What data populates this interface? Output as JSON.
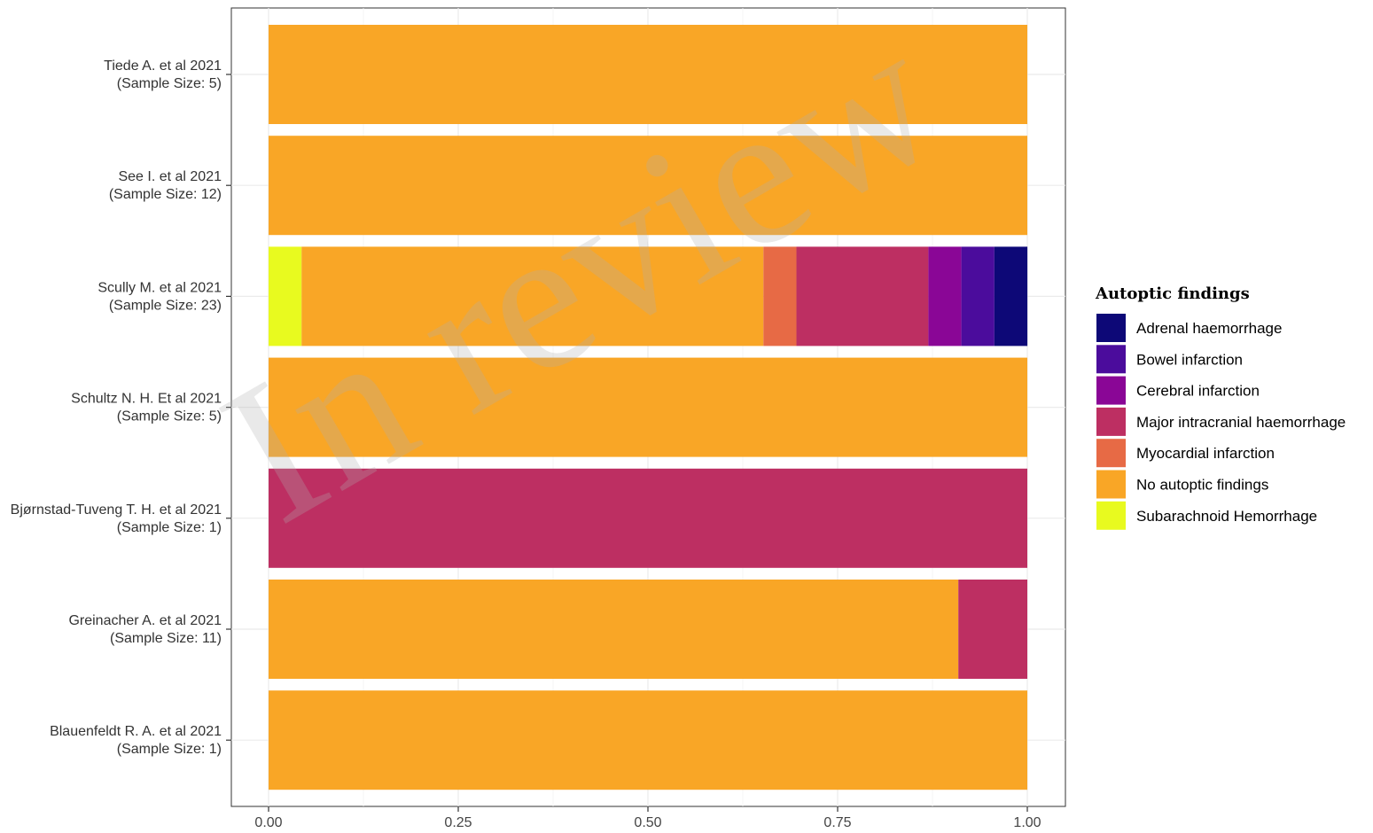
{
  "chart_data": {
    "type": "bar",
    "orientation": "horizontal-stacked",
    "categories": [
      {
        "name": "Tiede A. et al 2021",
        "sample": "(Sample Size: 5)"
      },
      {
        "name": "See I. et al 2021",
        "sample": "(Sample Size: 12)"
      },
      {
        "name": "Scully M. et al 2021",
        "sample": "(Sample Size: 23)"
      },
      {
        "name": "Schultz N. H. Et al 2021",
        "sample": "(Sample Size: 5)"
      },
      {
        "name": "Bjørnstad-Tuveng T. H. et al 2021",
        "sample": "(Sample Size: 1)"
      },
      {
        "name": "Greinacher A. et al 2021",
        "sample": "(Sample Size: 11)"
      },
      {
        "name": "Blauenfeldt R. A. et al 2021",
        "sample": "(Sample Size: 1)"
      }
    ],
    "series": [
      {
        "name": "Subarachnoid Hemorrhage",
        "color": "#E8FA1F",
        "values": [
          0,
          0,
          0.0435,
          0,
          0,
          0,
          0
        ]
      },
      {
        "name": "No autoptic findings",
        "color": "#F9A626",
        "values": [
          1,
          1,
          0.6087,
          1,
          0,
          0.9091,
          1
        ]
      },
      {
        "name": "Myocardial infarction",
        "color": "#E76A45",
        "values": [
          0,
          0,
          0.0435,
          0,
          0,
          0,
          0
        ]
      },
      {
        "name": "Major intracranial haemorrhage",
        "color": "#BD2F62",
        "values": [
          0,
          0,
          0.1739,
          0,
          1,
          0.0909,
          0
        ]
      },
      {
        "name": "Cerebral infarction",
        "color": "#8A0696",
        "values": [
          0,
          0,
          0.0435,
          0,
          0,
          0,
          0
        ]
      },
      {
        "name": "Bowel infarction",
        "color": "#4B0C9C",
        "values": [
          0,
          0,
          0.0435,
          0,
          0,
          0,
          0
        ]
      },
      {
        "name": "Adrenal haemorrhage",
        "color": "#0D0877",
        "values": [
          0,
          0,
          0.0435,
          0,
          0,
          0,
          0
        ]
      }
    ],
    "x_ticks": [
      "0.00",
      "0.25",
      "0.50",
      "0.75",
      "1.00"
    ],
    "xlim": [
      0,
      1
    ],
    "xlabel": "",
    "ylabel": "",
    "grid": true,
    "legend": {
      "title": "Autoptic findings",
      "placement": "right",
      "order": [
        "Adrenal haemorrhage",
        "Bowel infarction",
        "Cerebral infarction",
        "Major intracranial haemorrhage",
        "Myocardial infarction",
        "No autoptic findings",
        "Subarachnoid Hemorrhage"
      ]
    }
  },
  "watermark": "In review"
}
